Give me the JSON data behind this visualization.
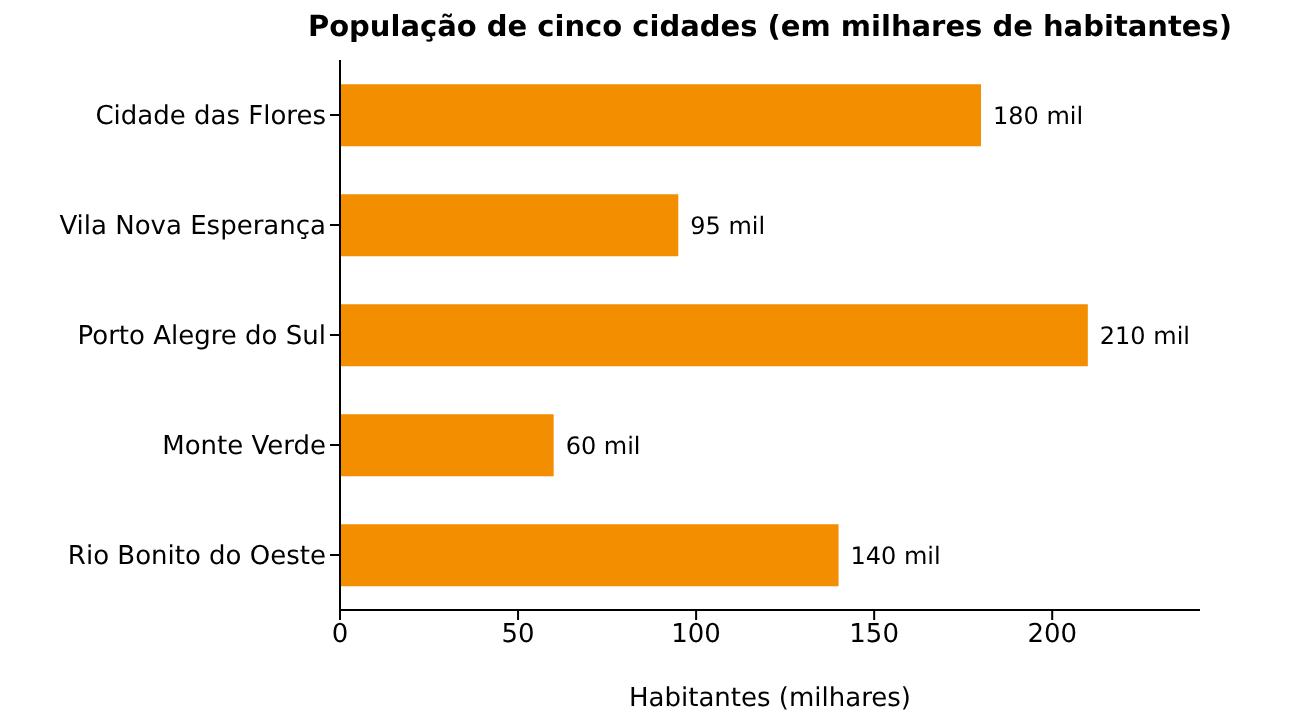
{
  "chart_data": {
    "type": "bar",
    "orientation": "horizontal",
    "title": "População de cinco cidades (em milhares de habitantes)",
    "xlabel": "Habitantes (milhares)",
    "categories": [
      "Cidade das Flores",
      "Vila Nova Esperança",
      "Porto Alegre do Sul",
      "Monte Verde",
      "Rio Bonito do Oeste"
    ],
    "values": [
      180,
      95,
      210,
      60,
      140
    ],
    "value_labels": [
      "180 mil",
      "95 mil",
      "210 mil",
      "60 mil",
      "140 mil"
    ],
    "color": "#f28e00",
    "xlim": [
      0,
      241.5
    ],
    "xticks": [
      0,
      50,
      100,
      150,
      200
    ],
    "grid": false
  }
}
